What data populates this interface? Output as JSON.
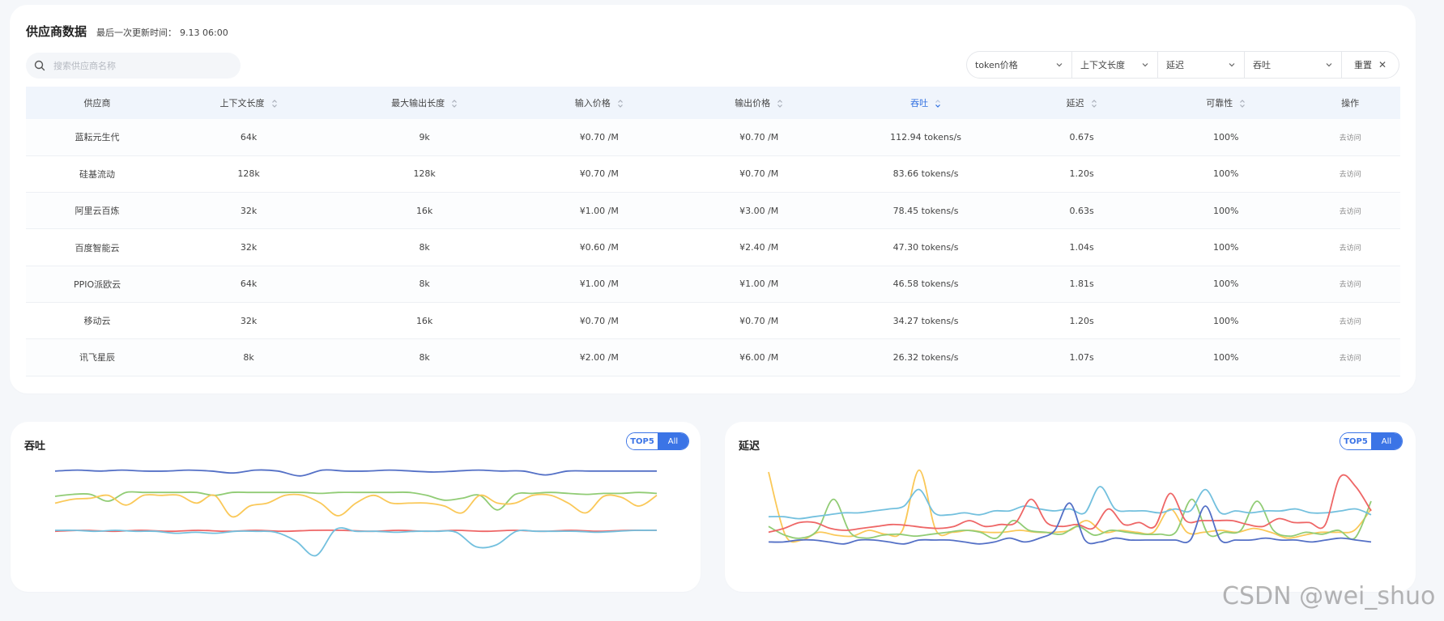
{
  "header": {
    "title": "供应商数据",
    "updated_label": "最后一次更新时间：",
    "updated_value": "9.13 06:00"
  },
  "search": {
    "placeholder": "搜索供应商名称"
  },
  "filters": [
    {
      "label": "token价格"
    },
    {
      "label": "上下文长度"
    },
    {
      "label": "延迟"
    },
    {
      "label": "吞吐"
    }
  ],
  "reset_label": "重置",
  "table": {
    "columns": [
      "供应商",
      "上下文长度",
      "最大输出长度",
      "输入价格",
      "输出价格",
      "吞吐",
      "延迟",
      "可靠性",
      "操作"
    ],
    "rows": [
      [
        "蓝耘元生代",
        "64k",
        "9k",
        "¥0.70 /M",
        "¥0.70 /M",
        "112.94 tokens/s",
        "0.67s",
        "100%",
        "去访问"
      ],
      [
        "硅基流动",
        "128k",
        "128k",
        "¥0.70 /M",
        "¥0.70 /M",
        "83.66 tokens/s",
        "1.20s",
        "100%",
        "去访问"
      ],
      [
        "阿里云百炼",
        "32k",
        "16k",
        "¥1.00 /M",
        "¥3.00 /M",
        "78.45 tokens/s",
        "0.63s",
        "100%",
        "去访问"
      ],
      [
        "百度智能云",
        "32k",
        "8k",
        "¥0.60 /M",
        "¥2.40 /M",
        "47.30 tokens/s",
        "1.04s",
        "100%",
        "去访问"
      ],
      [
        "PPIO派欧云",
        "64k",
        "8k",
        "¥1.00 /M",
        "¥1.00 /M",
        "46.58 tokens/s",
        "1.81s",
        "100%",
        "去访问"
      ],
      [
        "移动云",
        "32k",
        "16k",
        "¥0.70 /M",
        "¥0.70 /M",
        "34.27 tokens/s",
        "1.20s",
        "100%",
        "去访问"
      ],
      [
        "讯飞星辰",
        "8k",
        "8k",
        "¥2.00 /M",
        "¥6.00 /M",
        "26.32 tokens/s",
        "1.07s",
        "100%",
        "去访问"
      ]
    ]
  },
  "throughput_panel": {
    "title": "吞吐",
    "toggle_on": "TOP5",
    "toggle_off": "All"
  },
  "latency_panel": {
    "title": "延迟",
    "toggle_on": "TOP5",
    "toggle_off": "All"
  },
  "colors": {
    "accent": "#3b74e6",
    "series": [
      "#5470c6",
      "#91cc75",
      "#fac858",
      "#ee6666",
      "#73c0de"
    ]
  },
  "chart_data": [
    {
      "type": "line",
      "ylim": [
        0,
        100
      ],
      "grid": false,
      "series": [
        {
          "color": "#5470c6",
          "values": [
            91,
            92,
            91,
            92,
            91,
            91,
            92,
            91,
            89,
            92,
            91,
            86,
            92,
            91,
            91,
            92,
            91,
            90,
            91,
            92,
            91,
            91,
            87,
            91,
            91,
            91,
            91,
            91
          ]
        },
        {
          "color": "#91cc75",
          "values": [
            65,
            67,
            67,
            60,
            69,
            69,
            69,
            69,
            69,
            66,
            69,
            69,
            69,
            69,
            69,
            68,
            69,
            69,
            69,
            69,
            69,
            66,
            61,
            63,
            66,
            51,
            67,
            68,
            69,
            68,
            67,
            68,
            68,
            69,
            68
          ]
        },
        {
          "color": "#fac858",
          "values": [
            58,
            62,
            63,
            66,
            56,
            66,
            66,
            66,
            58,
            66,
            44,
            55,
            58,
            66,
            66,
            58,
            45,
            58,
            66,
            58,
            58,
            58,
            55,
            48,
            66,
            58,
            58,
            66,
            66,
            58,
            48,
            65,
            64,
            55,
            66
          ]
        },
        {
          "color": "#ee6666",
          "values": [
            29,
            30,
            29,
            30,
            29,
            30,
            29,
            30,
            29,
            30,
            30,
            29,
            30,
            29,
            30,
            29,
            30,
            29,
            30,
            29,
            30,
            30
          ]
        },
        {
          "color": "#73c0de",
          "values": [
            30,
            30,
            29,
            30,
            29,
            29,
            27,
            28,
            27,
            29,
            29,
            28,
            19,
            4,
            31,
            29,
            29,
            28,
            29,
            29,
            28,
            13,
            15,
            29,
            29,
            29,
            29,
            28,
            29,
            30,
            30
          ]
        }
      ]
    },
    {
      "type": "line",
      "ylim": [
        0,
        100
      ],
      "grid": false,
      "series": [
        {
          "color": "#fac858",
          "values": [
            90,
            25,
            20,
            28,
            25,
            24,
            30,
            26,
            30,
            92,
            30,
            28,
            30,
            28,
            28,
            30,
            28,
            28,
            30,
            40,
            28,
            30,
            28,
            28,
            52,
            28,
            28,
            30,
            28,
            32,
            28,
            22,
            25,
            28,
            28,
            30,
            52
          ]
        },
        {
          "color": "#91cc75",
          "values": [
            34,
            25,
            22,
            30,
            62,
            28,
            22,
            25,
            26,
            24,
            26,
            28,
            30,
            28,
            22,
            40,
            30,
            28,
            26,
            34,
            25,
            30,
            28,
            26,
            26,
            28,
            62,
            26,
            28,
            30,
            60,
            30,
            24,
            28,
            26,
            30,
            22,
            60
          ]
        },
        {
          "color": "#73c0de",
          "values": [
            44,
            44,
            42,
            44,
            46,
            48,
            48,
            50,
            52,
            55,
            72,
            48,
            46,
            48,
            46,
            50,
            50,
            55,
            52,
            50,
            52,
            48,
            75,
            52,
            50,
            50,
            48,
            52,
            50,
            72,
            48,
            50,
            48,
            50,
            50,
            52,
            48,
            48,
            50,
            52,
            46
          ]
        },
        {
          "color": "#ee6666",
          "values": [
            28,
            32,
            38,
            38,
            32,
            30,
            32,
            34,
            36,
            35,
            33,
            32,
            34,
            40,
            34,
            36,
            38,
            62,
            38,
            34,
            36,
            32,
            52,
            36,
            38,
            34,
            68,
            40,
            40,
            40,
            40,
            36,
            34,
            42,
            38,
            38,
            35,
            85,
            75,
            50
          ]
        },
        {
          "color": "#5470c6",
          "values": [
            18,
            18,
            20,
            20,
            18,
            16,
            20,
            20,
            18,
            16,
            20,
            20,
            20,
            18,
            16,
            18,
            22,
            18,
            22,
            30,
            58,
            20,
            18,
            22,
            20,
            20,
            20,
            20,
            20,
            55,
            20,
            20,
            20,
            22,
            20,
            20,
            18,
            20,
            22,
            20,
            18
          ]
        }
      ]
    }
  ],
  "watermark": "CSDN @wei_shuo"
}
